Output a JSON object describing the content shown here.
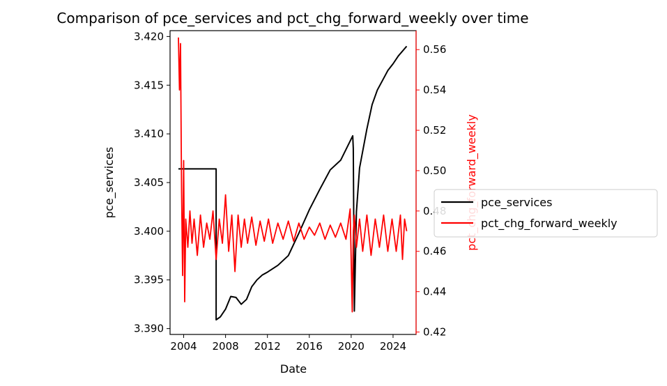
{
  "chart_data": {
    "type": "line",
    "title": "Comparison of pce_services and pct_chg_forward_weekly over time",
    "xlabel": "Date",
    "ylabel_left": "pce_services",
    "ylabel_right": "pct_chg_forward_weekly",
    "right_axis_color": "#ff0000",
    "x_ticks": [
      "2004",
      "2008",
      "2012",
      "2016",
      "2020",
      "2024"
    ],
    "y_left_ticks": [
      "3.390",
      "3.395",
      "3.400",
      "3.405",
      "3.410",
      "3.415",
      "3.420"
    ],
    "y_right_ticks": [
      "0.42",
      "0.44",
      "0.46",
      "0.48",
      "0.50",
      "0.52",
      "0.54",
      "0.56"
    ],
    "xlim": [
      2002.7,
      2026.2
    ],
    "ylim_left": [
      3.3894,
      3.4206
    ],
    "ylim_right": [
      0.4188,
      0.5694
    ],
    "legend": {
      "placement": "center-right",
      "entries": [
        "pce_services",
        "pct_chg_forward_weekly"
      ]
    },
    "series": [
      {
        "name": "pce_services",
        "axis": "left",
        "color": "#000000",
        "x": [
          2003.5,
          2007.1,
          2007.1,
          2007.5,
          2008.0,
          2008.5,
          2009.0,
          2009.5,
          2010.0,
          2010.5,
          2011.0,
          2011.5,
          2012.0,
          2013.0,
          2014.0,
          2015.0,
          2016.0,
          2017.0,
          2018.0,
          2019.0,
          2020.15,
          2020.2,
          2020.3,
          2020.5,
          2020.8,
          2021.5,
          2022.0,
          2022.5,
          2023.0,
          2023.5,
          2024.0,
          2024.5,
          2025.3
        ],
        "y": [
          3.4064,
          3.4064,
          3.3909,
          3.3912,
          3.392,
          3.3933,
          3.3932,
          3.3925,
          3.393,
          3.3943,
          3.395,
          3.3955,
          3.3958,
          3.3965,
          3.3975,
          3.3998,
          3.4022,
          3.4043,
          3.4063,
          3.4073,
          3.4098,
          3.4085,
          3.3918,
          3.402,
          3.4065,
          3.4105,
          3.413,
          3.4145,
          3.4155,
          3.4165,
          3.4172,
          3.418,
          3.419
        ]
      },
      {
        "name": "pct_chg_forward_weekly",
        "axis": "right",
        "color": "#ff0000",
        "x": [
          2003.5,
          2003.6,
          2003.7,
          2003.8,
          2003.9,
          2004.0,
          2004.1,
          2004.2,
          2004.4,
          2004.6,
          2004.8,
          2005.0,
          2005.3,
          2005.6,
          2005.9,
          2006.2,
          2006.5,
          2006.8,
          2007.1,
          2007.4,
          2007.7,
          2008.0,
          2008.3,
          2008.6,
          2008.9,
          2009.2,
          2009.5,
          2009.8,
          2010.1,
          2010.5,
          2010.9,
          2011.3,
          2011.7,
          2012.1,
          2012.5,
          2013.0,
          2013.5,
          2014.0,
          2014.5,
          2015.0,
          2015.5,
          2016.0,
          2016.5,
          2017.0,
          2017.5,
          2018.0,
          2018.5,
          2019.0,
          2019.5,
          2019.9,
          2020.1,
          2020.2,
          2020.3,
          2020.5,
          2020.8,
          2021.1,
          2021.5,
          2021.9,
          2022.3,
          2022.7,
          2023.1,
          2023.5,
          2023.9,
          2024.3,
          2024.7,
          2024.9,
          2025.1,
          2025.3
        ],
        "y": [
          0.566,
          0.54,
          0.563,
          0.49,
          0.448,
          0.505,
          0.435,
          0.476,
          0.462,
          0.48,
          0.464,
          0.476,
          0.458,
          0.478,
          0.462,
          0.474,
          0.466,
          0.48,
          0.456,
          0.476,
          0.464,
          0.488,
          0.46,
          0.478,
          0.45,
          0.478,
          0.462,
          0.476,
          0.464,
          0.477,
          0.463,
          0.475,
          0.465,
          0.476,
          0.464,
          0.474,
          0.466,
          0.475,
          0.465,
          0.474,
          0.466,
          0.472,
          0.468,
          0.474,
          0.466,
          0.473,
          0.467,
          0.474,
          0.466,
          0.481,
          0.43,
          0.47,
          0.478,
          0.462,
          0.476,
          0.46,
          0.478,
          0.458,
          0.476,
          0.462,
          0.478,
          0.46,
          0.476,
          0.46,
          0.478,
          0.456,
          0.476,
          0.47
        ]
      }
    ]
  }
}
